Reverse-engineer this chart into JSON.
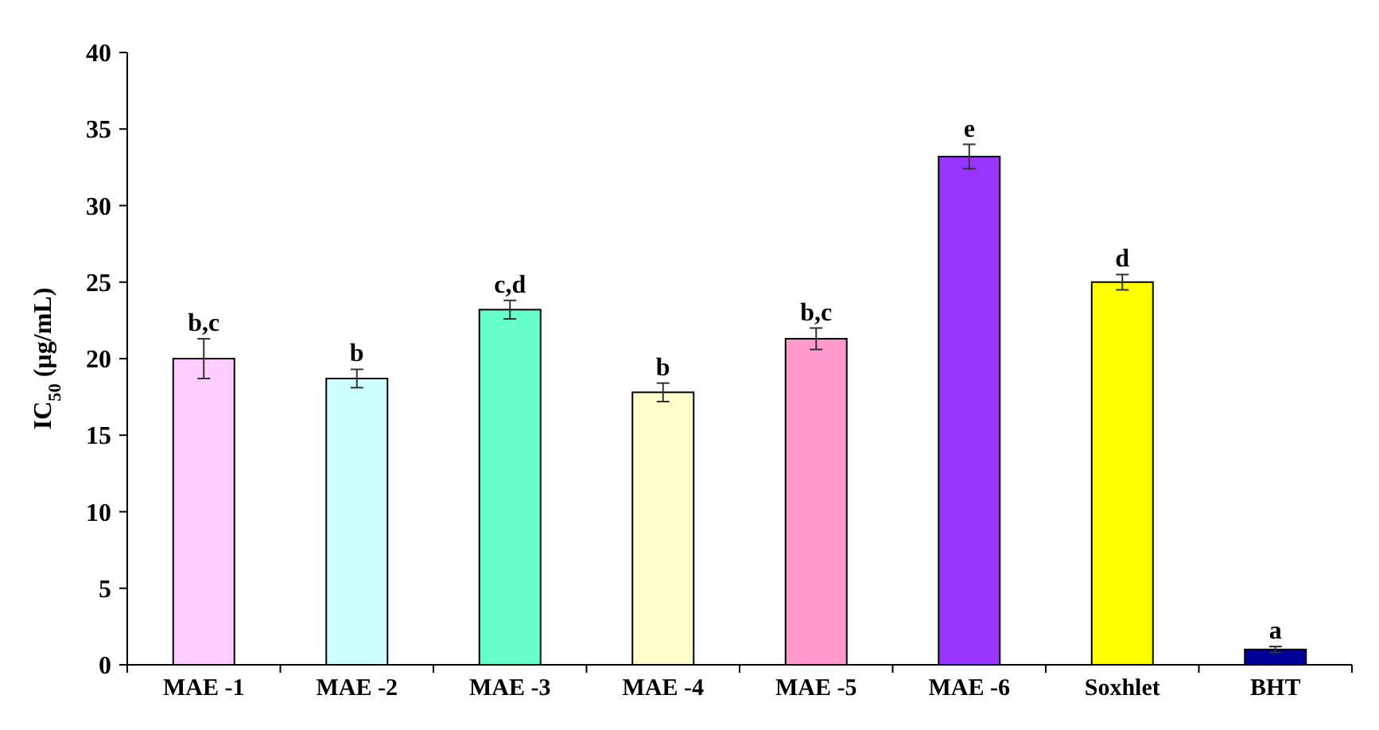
{
  "chart_data": {
    "type": "bar",
    "ylabel": "IC$_{50}$ (µg/mL)",
    "categories": [
      "MAE -1",
      "MAE -2",
      "MAE -3",
      "MAE -4",
      "MAE -5",
      "MAE -6",
      "Soxhlet",
      "BHT"
    ],
    "values": [
      20.0,
      18.7,
      23.2,
      17.8,
      21.3,
      33.2,
      25.0,
      1.0
    ],
    "errors": [
      1.3,
      0.6,
      0.6,
      0.6,
      0.7,
      0.8,
      0.5,
      0.2
    ],
    "colors": [
      "#ffccff",
      "#ccffff",
      "#66ffcc",
      "#ffffcc",
      "#ff99cc",
      "#9933ff",
      "#ffff00",
      "#000099"
    ],
    "ylim": [
      0,
      40
    ],
    "yticks": [
      0,
      5,
      10,
      15,
      20,
      25,
      30,
      35,
      40
    ],
    "grid": false,
    "annotations": [
      {
        "text": "b,c",
        "x": "MAE -1",
        "y": 21.3
      },
      {
        "text": "b",
        "x": "MAE -2",
        "y": 19.3
      },
      {
        "text": "c,d",
        "x": "MAE -3",
        "y": 23.8
      },
      {
        "text": "b",
        "x": "MAE -4",
        "y": 18.4
      },
      {
        "text": "b,c",
        "x": "MAE -5",
        "y": 22.0
      },
      {
        "text": "e",
        "x": "MAE -6",
        "y": 34.0
      },
      {
        "text": "d",
        "x": "Soxhlet",
        "y": 25.5
      },
      {
        "text": "a",
        "x": "BHT",
        "y": 1.2
      }
    ]
  }
}
